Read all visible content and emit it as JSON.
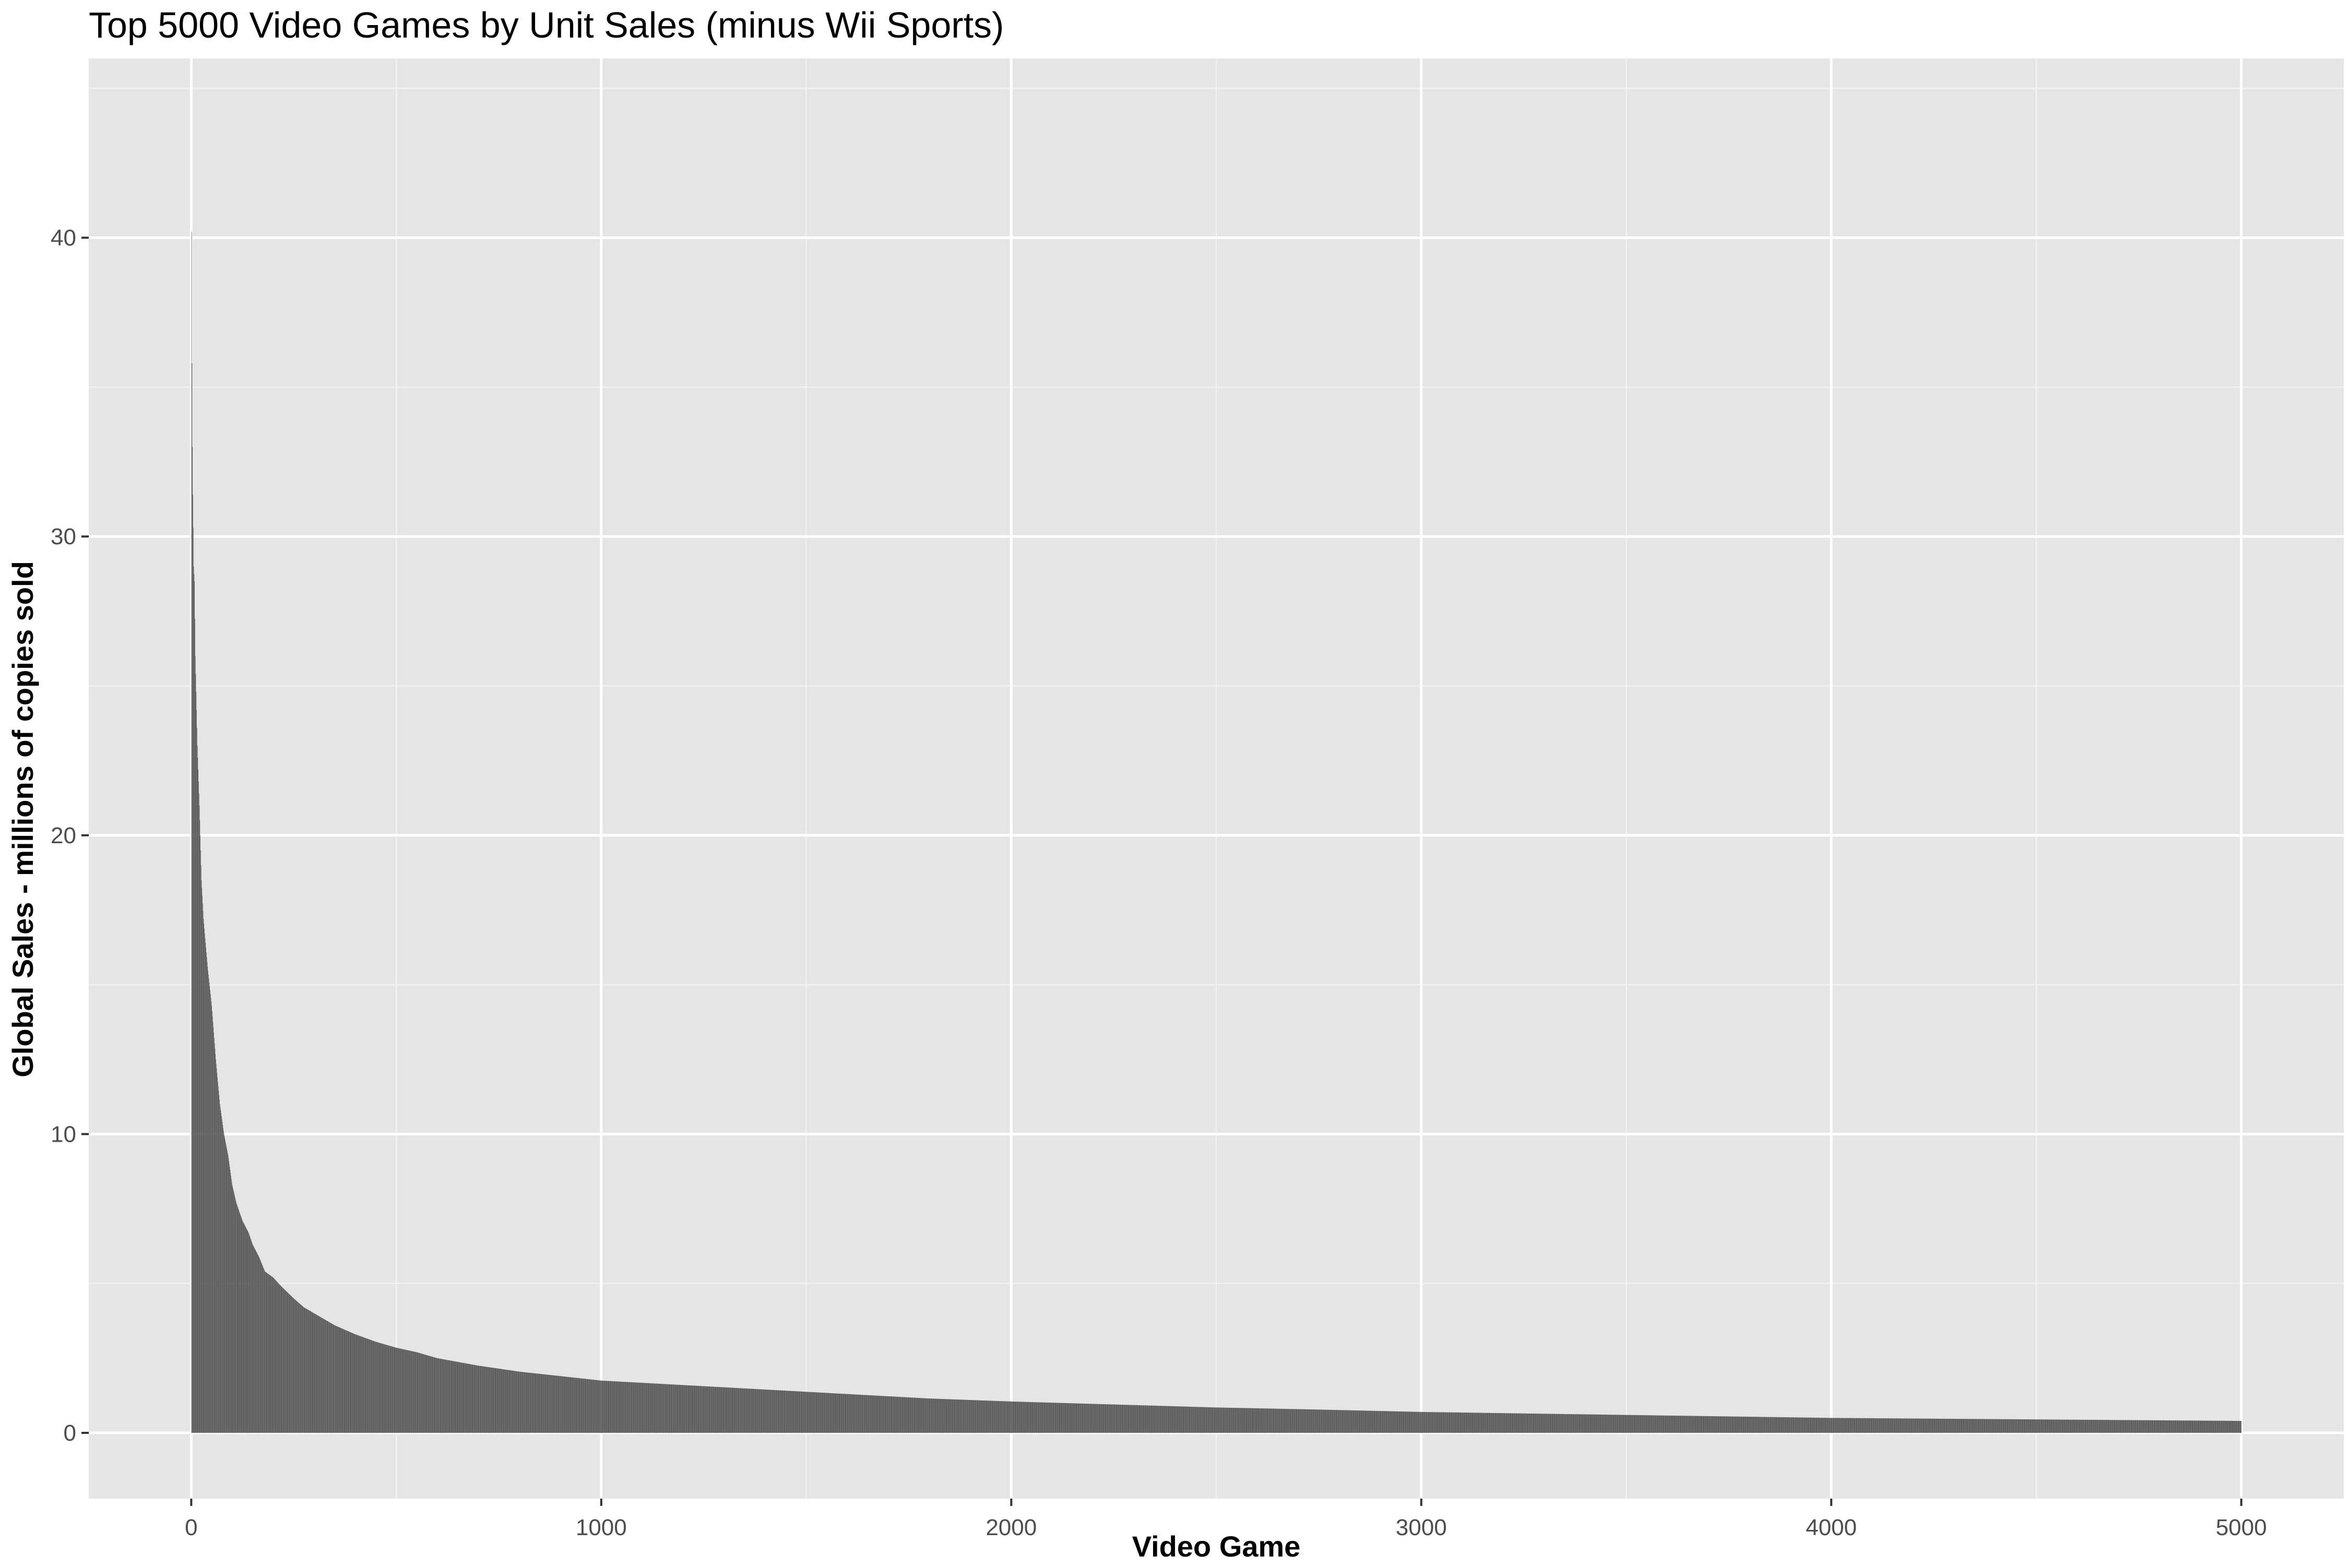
{
  "chart_data": {
    "type": "area",
    "title": "Top 5000 Video Games by Unit Sales (minus Wii Sports)",
    "xlabel": "Video Game",
    "ylabel": "Global Sales - millions of copies sold",
    "xlim": [
      -250,
      5250
    ],
    "ylim": [
      -2.2,
      46
    ],
    "x_ticks": [
      0,
      1000,
      2000,
      3000,
      4000,
      5000
    ],
    "y_ticks": [
      0,
      10,
      20,
      30,
      40
    ],
    "grid": true,
    "legend": "none",
    "colors": {
      "panel_background": "#e5e5e5",
      "grid_major": "#ffffff",
      "grid_minor": "#f2f2f2",
      "bars": "#4d4d4d",
      "text": "#000000",
      "tick_text": "#4d4d4d"
    },
    "series": [
      {
        "x": [
          1,
          2,
          3,
          4,
          5,
          6,
          8,
          10,
          12,
          15,
          20,
          25,
          30,
          40,
          50,
          60,
          70,
          80,
          90,
          100,
          110,
          125,
          140,
          150,
          165,
          180,
          200,
          220,
          250,
          275,
          300,
          350,
          400,
          450,
          500,
          550,
          600,
          700,
          800,
          900,
          1000,
          1200,
          1400,
          1600,
          1800,
          2000,
          2250,
          2500,
          2750,
          3000,
          3500,
          4000,
          4500,
          5000
        ],
        "values": [
          40.2,
          35.8,
          33.0,
          31.4,
          30.3,
          29.0,
          28.5,
          26.0,
          24.8,
          23.0,
          21.0,
          18.5,
          17.2,
          15.6,
          14.3,
          12.5,
          11.0,
          10.0,
          9.3,
          8.3,
          7.7,
          7.1,
          6.7,
          6.3,
          5.9,
          5.4,
          5.2,
          4.9,
          4.5,
          4.2,
          4.0,
          3.6,
          3.3,
          3.05,
          2.85,
          2.7,
          2.5,
          2.25,
          2.05,
          1.9,
          1.75,
          1.6,
          1.45,
          1.3,
          1.15,
          1.05,
          0.95,
          0.85,
          0.78,
          0.7,
          0.6,
          0.5,
          0.45,
          0.4
        ]
      }
    ]
  }
}
